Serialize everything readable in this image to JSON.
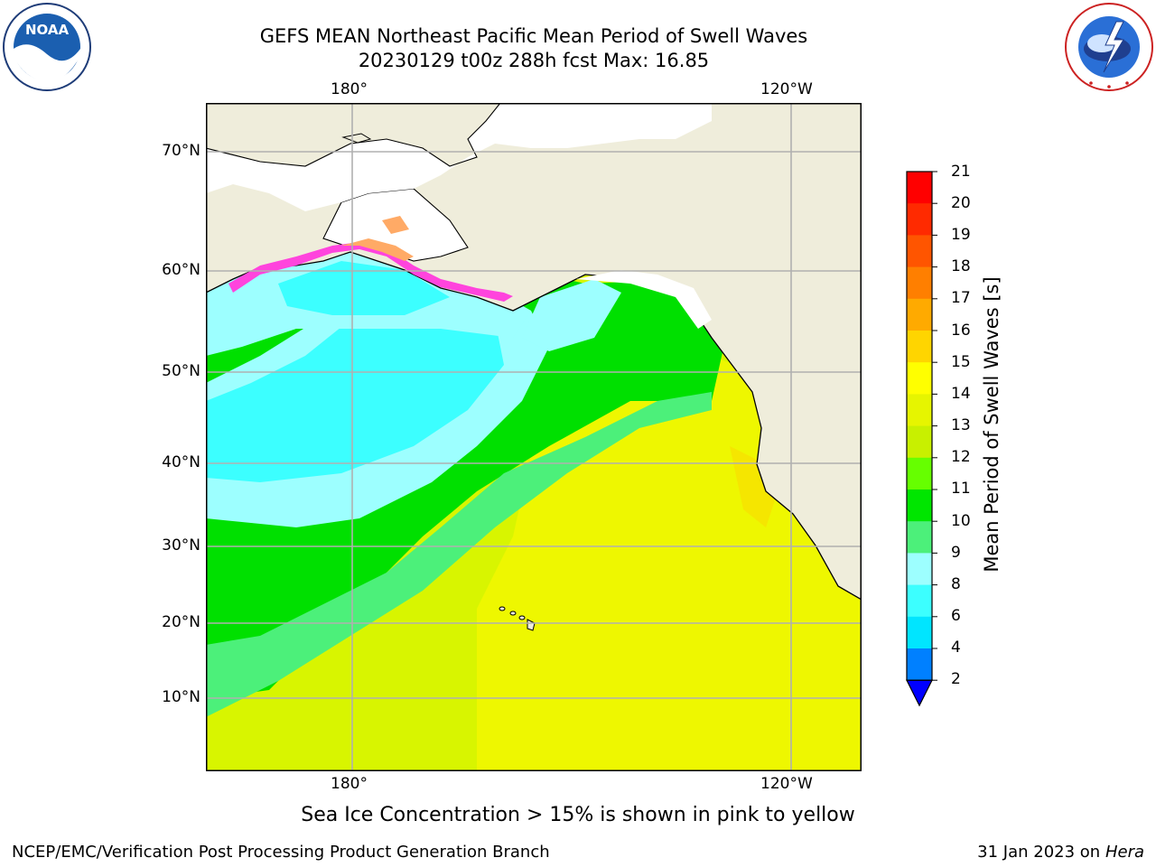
{
  "header": {
    "title_line1": "GEFS MEAN Northeast Pacific Mean Period of Swell Waves",
    "title_line2": "20230129 t00z 288h fcst   Max: 16.85"
  },
  "logos": {
    "noaa_text": "NOAA",
    "noaa_ring": "NATIONAL OCEANIC AND ATMOSPHERIC ADMINISTRATION · U.S. DEPARTMENT OF COMMERCE",
    "nws_ring": "NATIONAL WEATHER SERVICE"
  },
  "map": {
    "lon_labels_top": [
      "180°",
      "120°W"
    ],
    "lon_labels_bottom": [
      "180°",
      "120°W"
    ],
    "lat_labels": [
      "70°N",
      "60°N",
      "50°N",
      "40°N",
      "30°N",
      "20°N",
      "10°N"
    ],
    "colors": {
      "land": "#efeddb",
      "ice_white": "#ffffff",
      "grid": "#b0b0b0"
    }
  },
  "colorbar": {
    "label": "Mean Period of Swell Waves [s]",
    "ticks": [
      "21",
      "20",
      "19",
      "18",
      "17",
      "16",
      "15",
      "14",
      "13",
      "12",
      "11",
      "10",
      "9",
      "8",
      "6",
      "4",
      "2"
    ],
    "bands": [
      {
        "from": "20",
        "to": "21",
        "color": "#ff0000"
      },
      {
        "from": "19",
        "to": "20",
        "color": "#ff2a00"
      },
      {
        "from": "18",
        "to": "19",
        "color": "#ff5500"
      },
      {
        "from": "17",
        "to": "18",
        "color": "#ff7f00"
      },
      {
        "from": "16",
        "to": "17",
        "color": "#ffaa00"
      },
      {
        "from": "15",
        "to": "16",
        "color": "#ffd500"
      },
      {
        "from": "14",
        "to": "15",
        "color": "#ffff00"
      },
      {
        "from": "13",
        "to": "14",
        "color": "#e6f500"
      },
      {
        "from": "12",
        "to": "13",
        "color": "#c8f000"
      },
      {
        "from": "11",
        "to": "12",
        "color": "#66ff00"
      },
      {
        "from": "10",
        "to": "11",
        "color": "#00e600"
      },
      {
        "from": "9",
        "to": "10",
        "color": "#4cf07a"
      },
      {
        "from": "8",
        "to": "9",
        "color": "#9dffff"
      },
      {
        "from": "6",
        "to": "8",
        "color": "#3cffff"
      },
      {
        "from": "4",
        "to": "6",
        "color": "#00e5ff"
      },
      {
        "from": "2",
        "to": "4",
        "color": "#0080ff"
      },
      {
        "from": "",
        "to": "2",
        "color": "#0000ff"
      }
    ]
  },
  "note": "Sea Ice Concentration > 15% is shown in pink to yellow",
  "footer": {
    "left": "NCEP/EMC/Verification Post Processing Product Generation Branch",
    "right_date": "31 Jan 2023 on ",
    "right_host": "Hera"
  }
}
